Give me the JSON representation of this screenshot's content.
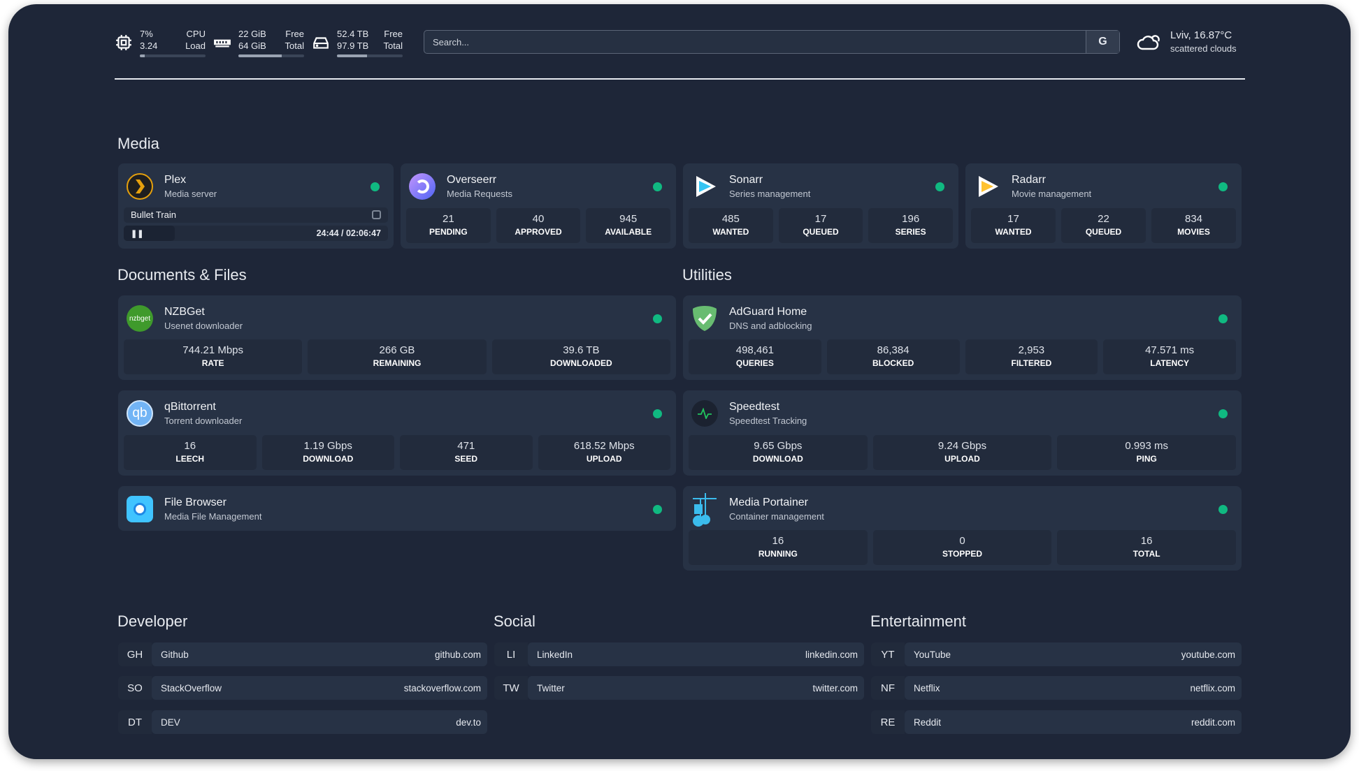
{
  "header": {
    "cpu": {
      "icon": "cpu-icon",
      "value1": "7%",
      "label1": "CPU",
      "value2": "3.24",
      "label2": "Load",
      "usage_percent": 7
    },
    "memory": {
      "icon": "memory-icon",
      "value1": "22 GiB",
      "label1": "Free",
      "value2": "64 GiB",
      "label2": "Total",
      "usage_percent": 66
    },
    "disk": {
      "icon": "disk-icon",
      "value1": "52.4 TB",
      "label1": "Free",
      "value2": "97.9 TB",
      "label2": "Total",
      "usage_percent": 46
    },
    "search": {
      "placeholder": "Search...",
      "button_label": "G"
    },
    "weather": {
      "icon": "cloud-icon",
      "location_temp": "Lviv, 16.87°C",
      "condition": "scattered clouds"
    }
  },
  "colors": {
    "background": "#1e2638",
    "card": "#273245",
    "status_ok": "#10b981"
  },
  "sections": {
    "media": "Media",
    "documents": "Documents & Files",
    "utilities": "Utilities",
    "developer": "Developer",
    "social": "Social",
    "entertainment": "Entertainment"
  },
  "services": {
    "plex": {
      "title": "Plex",
      "subtitle": "Media server",
      "icon": "plex-icon",
      "now_playing": "Bullet Train",
      "time": "24:44 / 02:06:47",
      "progress_fraction": 0.195,
      "pause_icon": "pause-icon",
      "transcode_icon": "direct-play-icon"
    },
    "overseerr": {
      "title": "Overseerr",
      "subtitle": "Media Requests",
      "icon": "overseerr-icon",
      "stats": [
        {
          "v": "21",
          "l": "Pending"
        },
        {
          "v": "40",
          "l": "Approved"
        },
        {
          "v": "945",
          "l": "Available"
        }
      ]
    },
    "sonarr": {
      "title": "Sonarr",
      "subtitle": "Series management",
      "icon": "sonarr-icon",
      "stats": [
        {
          "v": "485",
          "l": "Wanted"
        },
        {
          "v": "17",
          "l": "Queued"
        },
        {
          "v": "196",
          "l": "Series"
        }
      ]
    },
    "radarr": {
      "title": "Radarr",
      "subtitle": "Movie management",
      "icon": "radarr-icon",
      "stats": [
        {
          "v": "17",
          "l": "Wanted"
        },
        {
          "v": "22",
          "l": "Queued"
        },
        {
          "v": "834",
          "l": "Movies"
        }
      ]
    },
    "nzbget": {
      "title": "NZBGet",
      "subtitle": "Usenet downloader",
      "icon": "nzbget-icon",
      "icon_text": "nzbget",
      "stats": [
        {
          "v": "744.21 Mbps",
          "l": "Rate"
        },
        {
          "v": "266 GB",
          "l": "Remaining"
        },
        {
          "v": "39.6 TB",
          "l": "Downloaded"
        }
      ]
    },
    "qbittorrent": {
      "title": "qBittorrent",
      "subtitle": "Torrent downloader",
      "icon": "qbittorrent-icon",
      "icon_text": "qb",
      "stats": [
        {
          "v": "16",
          "l": "Leech"
        },
        {
          "v": "1.19 Gbps",
          "l": "Download"
        },
        {
          "v": "471",
          "l": "Seed"
        },
        {
          "v": "618.52 Mbps",
          "l": "Upload"
        }
      ]
    },
    "filebrowser": {
      "title": "File Browser",
      "subtitle": "Media File Management",
      "icon": "file-browser-icon"
    },
    "adguard": {
      "title": "AdGuard Home",
      "subtitle": "DNS and adblocking",
      "icon": "adguard-icon",
      "stats": [
        {
          "v": "498,461",
          "l": "Queries"
        },
        {
          "v": "86,384",
          "l": "Blocked"
        },
        {
          "v": "2,953",
          "l": "Filtered"
        },
        {
          "v": "47.571 ms",
          "l": "Latency"
        }
      ]
    },
    "speedtest": {
      "title": "Speedtest",
      "subtitle": "Speedtest Tracking",
      "icon": "speedtest-icon",
      "stats": [
        {
          "v": "9.65 Gbps",
          "l": "Download"
        },
        {
          "v": "9.24 Gbps",
          "l": "Upload"
        },
        {
          "v": "0.993 ms",
          "l": "Ping"
        }
      ]
    },
    "portainer": {
      "title": "Media Portainer",
      "subtitle": "Container management",
      "icon": "portainer-icon",
      "stats": [
        {
          "v": "16",
          "l": "Running"
        },
        {
          "v": "0",
          "l": "Stopped"
        },
        {
          "v": "16",
          "l": "Total"
        }
      ]
    }
  },
  "bookmarks": {
    "developer": [
      {
        "abbr": "GH",
        "name": "Github",
        "url": "github.com"
      },
      {
        "abbr": "SO",
        "name": "StackOverflow",
        "url": "stackoverflow.com"
      },
      {
        "abbr": "DT",
        "name": "DEV",
        "url": "dev.to"
      }
    ],
    "social": [
      {
        "abbr": "LI",
        "name": "LinkedIn",
        "url": "linkedin.com"
      },
      {
        "abbr": "TW",
        "name": "Twitter",
        "url": "twitter.com"
      }
    ],
    "entertainment": [
      {
        "abbr": "YT",
        "name": "YouTube",
        "url": "youtube.com"
      },
      {
        "abbr": "NF",
        "name": "Netflix",
        "url": "netflix.com"
      },
      {
        "abbr": "RE",
        "name": "Reddit",
        "url": "reddit.com"
      }
    ]
  }
}
